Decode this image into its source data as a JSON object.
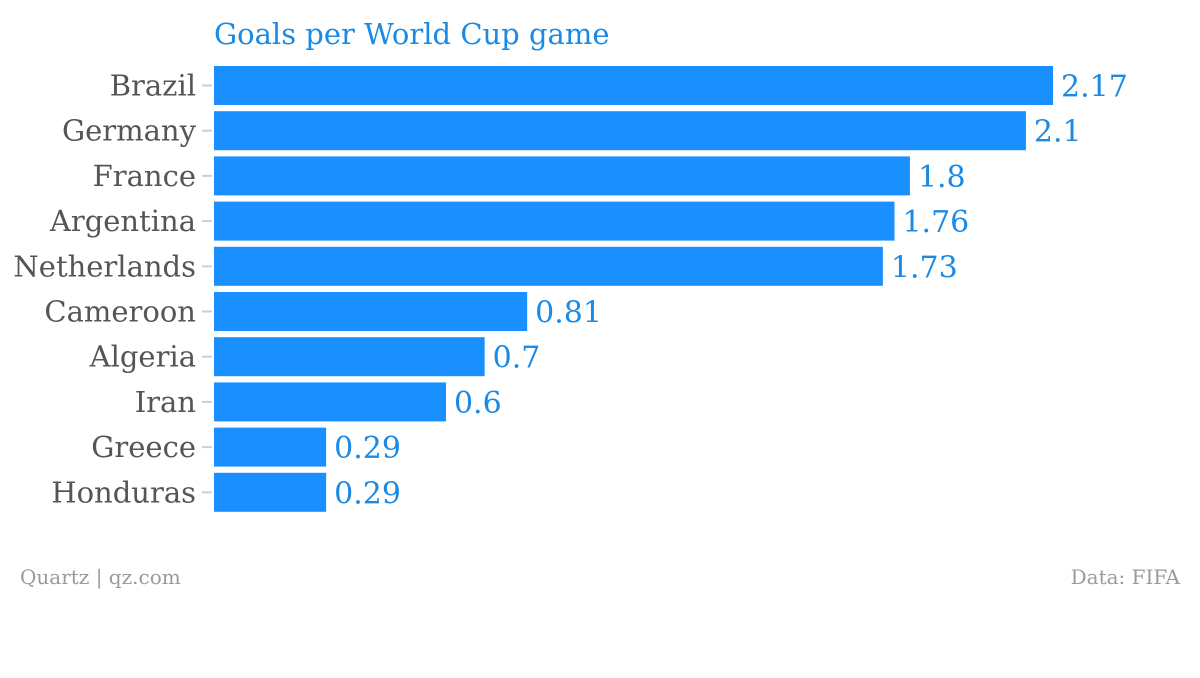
{
  "chart_data": {
    "type": "bar",
    "orientation": "horizontal",
    "title": "Goals per World Cup game",
    "categories": [
      "Brazil",
      "Germany",
      "France",
      "Argentina",
      "Netherlands",
      "Cameroon",
      "Algeria",
      "Iran",
      "Greece",
      "Honduras"
    ],
    "values": [
      2.17,
      2.1,
      1.8,
      1.76,
      1.73,
      0.81,
      0.7,
      0.6,
      0.29,
      0.29
    ],
    "value_labels": [
      "2.17",
      "2.1",
      "1.8",
      "1.76",
      "1.73",
      "0.81",
      "0.7",
      "0.6",
      "0.29",
      "0.29"
    ],
    "xlim": [
      0,
      2.17
    ],
    "grid": false,
    "bar_color": "#1a8fff"
  },
  "footer": {
    "source_left": "Quartz | qz.com",
    "source_right": "Data: FIFA"
  },
  "colors": {
    "title": "#1a8ae5",
    "value_label": "#1a8ae5",
    "category_label": "#555555",
    "footer": "#9a9a9a"
  }
}
